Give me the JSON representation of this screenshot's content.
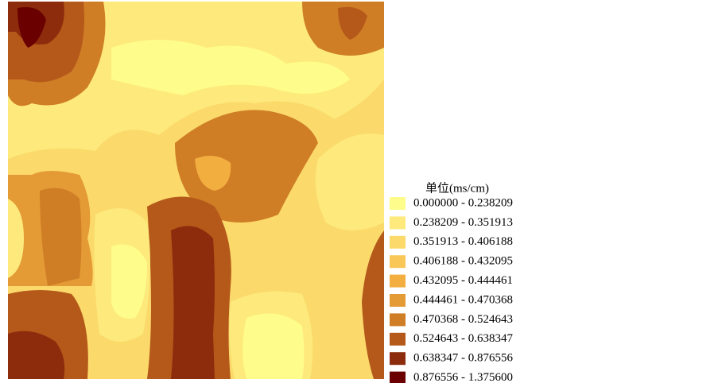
{
  "legend": {
    "title": "单位(ms/cm)",
    "items": [
      {
        "label": "0.000000 - 0.238209",
        "color": "#fefc8a"
      },
      {
        "label": "0.238209 - 0.351913",
        "color": "#fde97c"
      },
      {
        "label": "0.351913 - 0.406188",
        "color": "#fbd96b"
      },
      {
        "label": "0.406188 - 0.432095",
        "color": "#f9c757"
      },
      {
        "label": "0.432095 - 0.444461",
        "color": "#f3ae40"
      },
      {
        "label": "0.444461 - 0.470368",
        "color": "#e49a35"
      },
      {
        "label": "0.470368 - 0.524643",
        "color": "#cf7e26"
      },
      {
        "label": "0.524643 - 0.638347",
        "color": "#b5591a"
      },
      {
        "label": "0.638347 - 0.876556",
        "color": "#8c2c0c"
      },
      {
        "label": "0.876556 - 1.375600",
        "color": "#6b0000"
      }
    ]
  }
}
